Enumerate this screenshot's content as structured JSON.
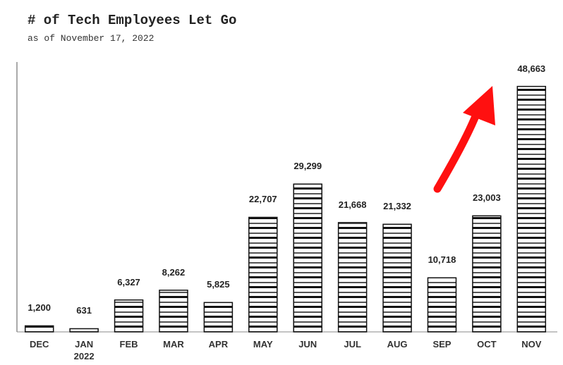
{
  "chart_data": {
    "type": "bar",
    "title": "# of Tech Employees Let Go",
    "subtitle": "as of November 17, 2022",
    "categories": [
      "DEC",
      "JAN\n2022",
      "FEB",
      "MAR",
      "APR",
      "MAY",
      "JUN",
      "JUL",
      "AUG",
      "SEP",
      "OCT",
      "NOV"
    ],
    "values": [
      1200,
      631,
      6327,
      8262,
      5825,
      22707,
      29299,
      21668,
      21332,
      10718,
      23003,
      48663
    ],
    "value_labels": [
      "1,200",
      "631",
      "6,327",
      "8,262",
      "5,825",
      "22,707",
      "29,299",
      "21,668",
      "21,332",
      "10,718",
      "23,003",
      "48,663"
    ],
    "color": "#111111",
    "ylim": [
      0,
      53500
    ]
  }
}
